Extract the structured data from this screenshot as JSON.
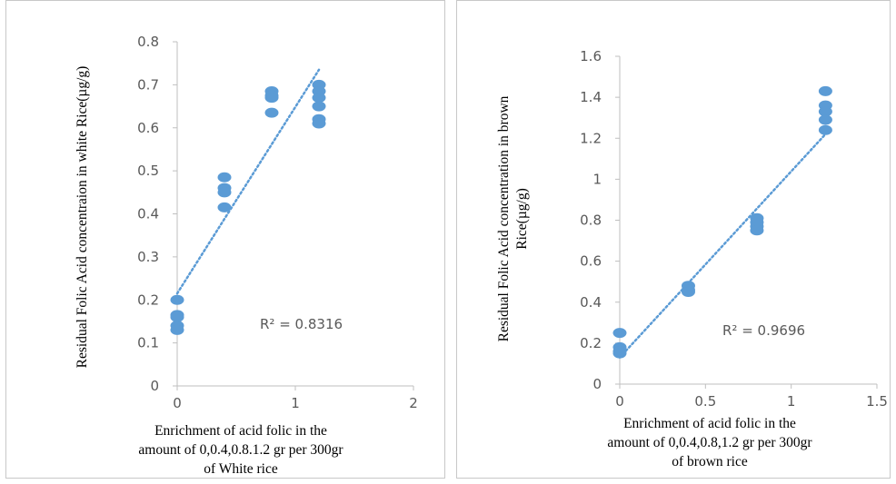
{
  "chart_data": [
    {
      "type": "scatter",
      "y_label_lines": [
        "Residual Folic Acid concentraion in white Rice(µg/g)"
      ],
      "x_label_lines": [
        "Enrichment  of acid folic  in the",
        "amount of 0,0.4,0.8.1.2  gr per 300gr",
        "of White rice"
      ],
      "r2_label": "R² = 0.8316",
      "xlim": [
        0,
        2
      ],
      "ylim": [
        0,
        0.8
      ],
      "x_ticks": [
        0,
        1,
        2
      ],
      "x_tick_labels": [
        "0",
        "1",
        "2"
      ],
      "y_ticks": [
        0,
        0.1,
        0.2,
        0.3,
        0.4,
        0.5,
        0.6,
        0.7,
        0.8
      ],
      "y_tick_labels": [
        "0",
        "0.1",
        "0.2",
        "0.3",
        "0.4",
        "0.5",
        "0.6",
        "0.7",
        "0.8"
      ],
      "points": [
        {
          "x": 0,
          "y": 0.2
        },
        {
          "x": 0,
          "y": 0.165
        },
        {
          "x": 0,
          "y": 0.16
        },
        {
          "x": 0,
          "y": 0.14
        },
        {
          "x": 0,
          "y": 0.13
        },
        {
          "x": 0.4,
          "y": 0.485
        },
        {
          "x": 0.4,
          "y": 0.46
        },
        {
          "x": 0.4,
          "y": 0.45
        },
        {
          "x": 0.4,
          "y": 0.415
        },
        {
          "x": 0.8,
          "y": 0.685
        },
        {
          "x": 0.8,
          "y": 0.675
        },
        {
          "x": 0.8,
          "y": 0.67
        },
        {
          "x": 0.8,
          "y": 0.635
        },
        {
          "x": 1.2,
          "y": 0.7
        },
        {
          "x": 1.2,
          "y": 0.685
        },
        {
          "x": 1.2,
          "y": 0.67
        },
        {
          "x": 1.2,
          "y": 0.65
        },
        {
          "x": 1.2,
          "y": 0.62
        },
        {
          "x": 1.2,
          "y": 0.61
        }
      ],
      "trendline": {
        "x": [
          0,
          1.2
        ],
        "y": [
          0.215,
          0.735
        ]
      },
      "marker_color": "#5b9bd5",
      "trend_color": "#5b9bd5",
      "grid": false
    },
    {
      "type": "scatter",
      "y_label_lines": [
        "Residual Folic Acid concentration in  brown",
        "Rice(µg/g)"
      ],
      "x_label_lines": [
        "Enrichment  of acid folic  in the",
        "amount of 0,0.4,0.8,1.2  gr per 300gr",
        "of brown rice"
      ],
      "r2_label": "R² = 0.9696",
      "xlim": [
        0,
        1.5
      ],
      "ylim": [
        0,
        1.6
      ],
      "x_ticks": [
        0,
        0.5,
        1,
        1.5
      ],
      "x_tick_labels": [
        "0",
        "0.5",
        "1",
        "1.5"
      ],
      "y_ticks": [
        0,
        0.2,
        0.4,
        0.6,
        0.8,
        1,
        1.2,
        1.4,
        1.6
      ],
      "y_tick_labels": [
        "0",
        "0.2",
        "0.4",
        "0.6",
        "0.8",
        "1",
        "1.2",
        "1.4",
        "1.6"
      ],
      "points": [
        {
          "x": 0,
          "y": 0.25
        },
        {
          "x": 0,
          "y": 0.18
        },
        {
          "x": 0,
          "y": 0.16
        },
        {
          "x": 0,
          "y": 0.15
        },
        {
          "x": 0.4,
          "y": 0.48
        },
        {
          "x": 0.4,
          "y": 0.46
        },
        {
          "x": 0.4,
          "y": 0.45
        },
        {
          "x": 0.8,
          "y": 0.81
        },
        {
          "x": 0.8,
          "y": 0.79
        },
        {
          "x": 0.8,
          "y": 0.77
        },
        {
          "x": 0.8,
          "y": 0.75
        },
        {
          "x": 1.2,
          "y": 1.43
        },
        {
          "x": 1.2,
          "y": 1.36
        },
        {
          "x": 1.2,
          "y": 1.33
        },
        {
          "x": 1.2,
          "y": 1.29
        },
        {
          "x": 1.2,
          "y": 1.24
        }
      ],
      "trendline": {
        "x": [
          0,
          1.2
        ],
        "y": [
          0.13,
          1.22
        ]
      },
      "marker_color": "#5b9bd5",
      "trend_color": "#5b9bd5",
      "grid": false
    }
  ]
}
